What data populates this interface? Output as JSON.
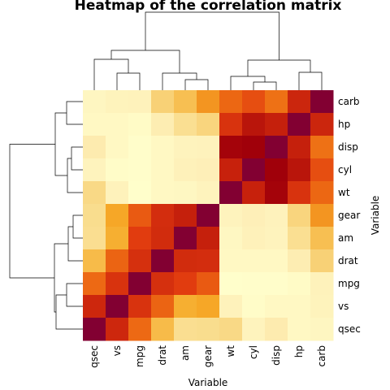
{
  "chart_data": {
    "type": "heatmap",
    "title": "Heatmap of the correlation matrix",
    "xlabel": "Variable",
    "ylabel": "Variable",
    "row_labels": [
      "carb",
      "hp",
      "disp",
      "cyl",
      "wt",
      "gear",
      "am",
      "drat",
      "mpg",
      "vs",
      "qsec"
    ],
    "col_labels": [
      "qsec",
      "vs",
      "mpg",
      "drat",
      "am",
      "gear",
      "wt",
      "cyl",
      "disp",
      "hp",
      "carb"
    ],
    "values": [
      [
        -0.66,
        -0.57,
        -0.55,
        -0.09,
        0.06,
        0.27,
        0.43,
        0.53,
        0.39,
        0.75,
        1.0
      ],
      [
        -0.71,
        -0.72,
        -0.78,
        -0.45,
        -0.24,
        -0.13,
        0.66,
        0.83,
        0.79,
        1.0,
        0.75
      ],
      [
        -0.43,
        -0.71,
        -0.85,
        -0.71,
        -0.59,
        -0.56,
        0.89,
        0.9,
        1.0,
        0.79,
        0.39
      ],
      [
        -0.59,
        -0.81,
        -0.85,
        -0.7,
        -0.52,
        -0.49,
        0.78,
        1.0,
        0.9,
        0.83,
        0.53
      ],
      [
        -0.17,
        -0.55,
        -0.87,
        -0.71,
        -0.69,
        -0.58,
        1.0,
        0.78,
        0.89,
        0.66,
        0.43
      ],
      [
        -0.21,
        0.21,
        0.48,
        0.7,
        0.79,
        1.0,
        -0.58,
        -0.49,
        -0.56,
        -0.13,
        0.27
      ],
      [
        -0.23,
        0.17,
        0.6,
        0.71,
        1.0,
        0.79,
        -0.69,
        -0.52,
        -0.59,
        -0.24,
        0.06
      ],
      [
        0.09,
        0.44,
        0.68,
        1.0,
        0.71,
        0.7,
        -0.71,
        -0.7,
        -0.71,
        -0.45,
        -0.09
      ],
      [
        0.42,
        0.66,
        1.0,
        0.68,
        0.6,
        0.48,
        -0.87,
        -0.85,
        -0.85,
        -0.78,
        -0.55
      ],
      [
        0.74,
        1.0,
        0.66,
        0.44,
        0.17,
        0.21,
        -0.55,
        -0.81,
        -0.71,
        -0.72,
        -0.57
      ],
      [
        1.0,
        0.74,
        0.42,
        0.09,
        -0.23,
        -0.21,
        -0.17,
        -0.59,
        -0.43,
        -0.71,
        -0.66
      ]
    ],
    "colormap": "YlOrRd"
  }
}
